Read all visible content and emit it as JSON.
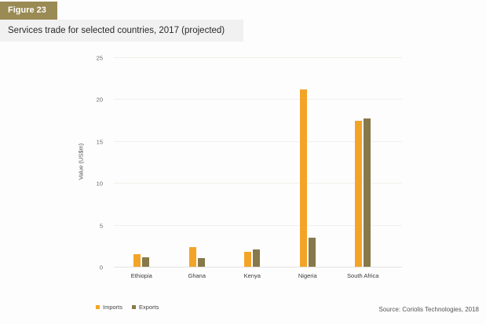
{
  "figure": {
    "label": "Figure 23",
    "title": "Services trade for selected countries, 2017 (projected)"
  },
  "source": "Source: Coriolis Technologies, 2018",
  "colors": {
    "badge_background": "#9a8a54",
    "title_band_background": "#f1f1f2",
    "imports_orange": "#f3a427",
    "exports_olive": "#87794a",
    "gridline": "#f1f0ec",
    "axis_line": "#e4e3de"
  },
  "chart_data": {
    "type": "bar",
    "categories": [
      "Ethiopia",
      "Ghana",
      "Kenya",
      "Nigeria",
      "South Africa"
    ],
    "series": [
      {
        "name": "Imports",
        "color": "#f3a427",
        "values": [
          1.5,
          2.3,
          1.8,
          21.2,
          17.4
        ]
      },
      {
        "name": "Exports",
        "color": "#87794a",
        "values": [
          1.1,
          1.0,
          2.1,
          3.5,
          17.7
        ]
      }
    ],
    "title": "Services trade for selected countries, 2017 (projected)",
    "xlabel": "",
    "ylabel": "Value (US$m)",
    "ylim": [
      0,
      25
    ],
    "yticks": [
      0,
      5,
      10,
      15,
      20,
      25
    ],
    "grid": true,
    "legend_position": "bottom-left"
  }
}
